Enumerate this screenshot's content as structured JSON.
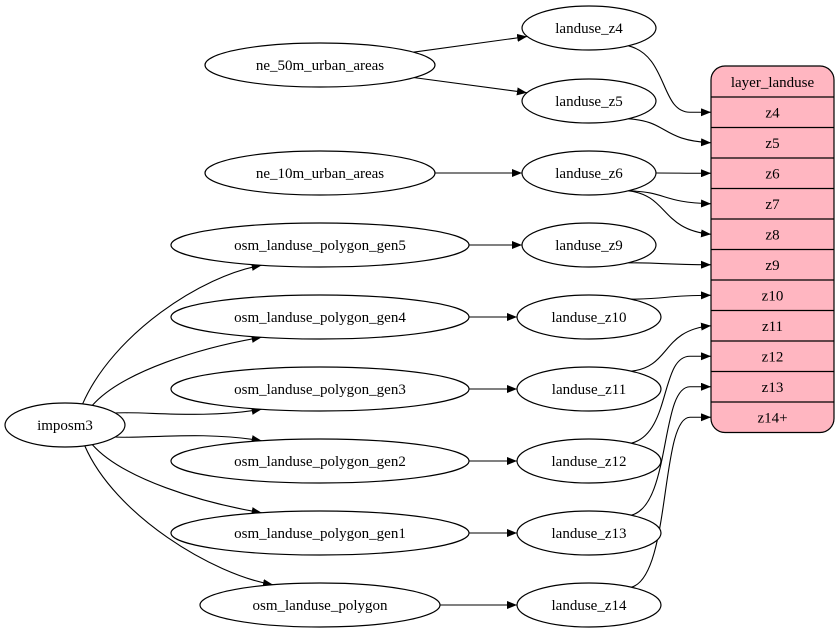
{
  "nodes": [
    {
      "id": "imposm3",
      "label": "imposm3"
    },
    {
      "id": "ne_50m_urban_areas",
      "label": "ne_50m_urban_areas"
    },
    {
      "id": "ne_10m_urban_areas",
      "label": "ne_10m_urban_areas"
    },
    {
      "id": "osm_landuse_polygon_gen5",
      "label": "osm_landuse_polygon_gen5"
    },
    {
      "id": "osm_landuse_polygon_gen4",
      "label": "osm_landuse_polygon_gen4"
    },
    {
      "id": "osm_landuse_polygon_gen3",
      "label": "osm_landuse_polygon_gen3"
    },
    {
      "id": "osm_landuse_polygon_gen2",
      "label": "osm_landuse_polygon_gen2"
    },
    {
      "id": "osm_landuse_polygon_gen1",
      "label": "osm_landuse_polygon_gen1"
    },
    {
      "id": "osm_landuse_polygon",
      "label": "osm_landuse_polygon"
    },
    {
      "id": "landuse_z4",
      "label": "landuse_z4"
    },
    {
      "id": "landuse_z5",
      "label": "landuse_z5"
    },
    {
      "id": "landuse_z6",
      "label": "landuse_z6"
    },
    {
      "id": "landuse_z9",
      "label": "landuse_z9"
    },
    {
      "id": "landuse_z10",
      "label": "landuse_z10"
    },
    {
      "id": "landuse_z11",
      "label": "landuse_z11"
    },
    {
      "id": "landuse_z12",
      "label": "landuse_z12"
    },
    {
      "id": "landuse_z13",
      "label": "landuse_z13"
    },
    {
      "id": "landuse_z14",
      "label": "landuse_z14"
    }
  ],
  "record": {
    "title": "layer_landuse",
    "fields": [
      "z4",
      "z5",
      "z6",
      "z7",
      "z8",
      "z9",
      "z10",
      "z11",
      "z12",
      "z13",
      "z14+"
    ],
    "fill": "#ffb6c1"
  },
  "edges": [
    [
      "ne_50m_urban_areas",
      "landuse_z4"
    ],
    [
      "ne_50m_urban_areas",
      "landuse_z5"
    ],
    [
      "ne_10m_urban_areas",
      "landuse_z6"
    ],
    [
      "imposm3",
      "osm_landuse_polygon_gen5"
    ],
    [
      "imposm3",
      "osm_landuse_polygon_gen4"
    ],
    [
      "imposm3",
      "osm_landuse_polygon_gen3"
    ],
    [
      "imposm3",
      "osm_landuse_polygon_gen2"
    ],
    [
      "imposm3",
      "osm_landuse_polygon_gen1"
    ],
    [
      "imposm3",
      "osm_landuse_polygon"
    ],
    [
      "osm_landuse_polygon_gen5",
      "landuse_z9"
    ],
    [
      "osm_landuse_polygon_gen4",
      "landuse_z10"
    ],
    [
      "osm_landuse_polygon_gen3",
      "landuse_z11"
    ],
    [
      "osm_landuse_polygon_gen2",
      "landuse_z12"
    ],
    [
      "osm_landuse_polygon_gen1",
      "landuse_z13"
    ],
    [
      "osm_landuse_polygon",
      "landuse_z14"
    ],
    [
      "landuse_z4",
      "z4"
    ],
    [
      "landuse_z5",
      "z5"
    ],
    [
      "landuse_z6",
      "z6"
    ],
    [
      "landuse_z6",
      "z7"
    ],
    [
      "landuse_z6",
      "z8"
    ],
    [
      "landuse_z9",
      "z9"
    ],
    [
      "landuse_z10",
      "z10"
    ],
    [
      "landuse_z11",
      "z11"
    ],
    [
      "landuse_z12",
      "z12"
    ],
    [
      "landuse_z13",
      "z13"
    ],
    [
      "landuse_z14",
      "z14+"
    ]
  ]
}
